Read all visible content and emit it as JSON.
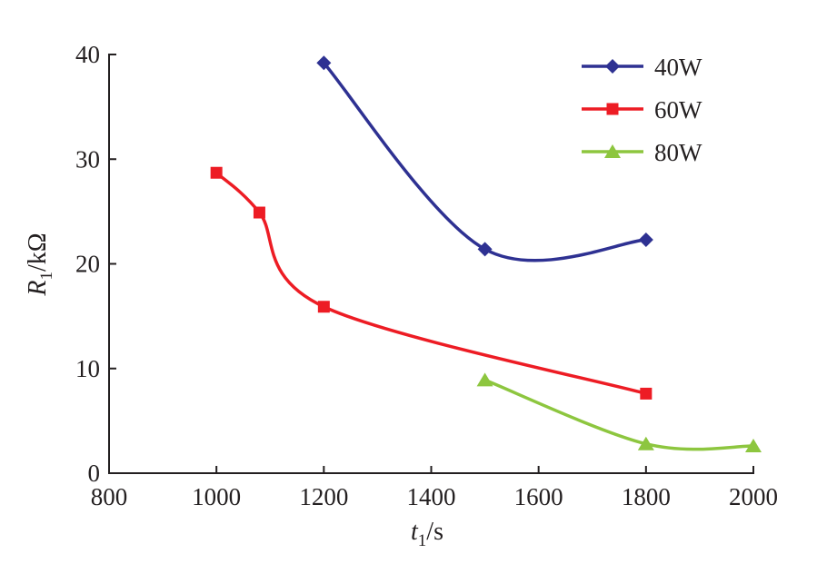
{
  "chart_data": {
    "type": "line",
    "xlabel": {
      "main": "t",
      "sub": "1",
      "unit": "/s"
    },
    "ylabel": {
      "main": "R",
      "sub": "1",
      "unit": "/kΩ"
    },
    "xlim": [
      800,
      2000
    ],
    "ylim": [
      0,
      40
    ],
    "xticks": [
      800,
      1000,
      1200,
      1400,
      1600,
      1800,
      2000
    ],
    "yticks": [
      0,
      10,
      20,
      30,
      40
    ],
    "grid": false,
    "legend_position": "top-right",
    "series": [
      {
        "name": "40W",
        "color": "#2e3192",
        "marker": "diamond",
        "x": [
          1200,
          1500,
          1800
        ],
        "y": [
          39.2,
          21.4,
          22.3
        ]
      },
      {
        "name": "60W",
        "color": "#ed1c24",
        "marker": "square",
        "x": [
          1000,
          1080,
          1200,
          1800
        ],
        "y": [
          28.7,
          24.9,
          15.9,
          7.6
        ]
      },
      {
        "name": "80W",
        "color": "#8dc63f",
        "marker": "triangle",
        "x": [
          1500,
          1800,
          2000
        ],
        "y": [
          8.9,
          2.8,
          2.6
        ]
      }
    ]
  }
}
